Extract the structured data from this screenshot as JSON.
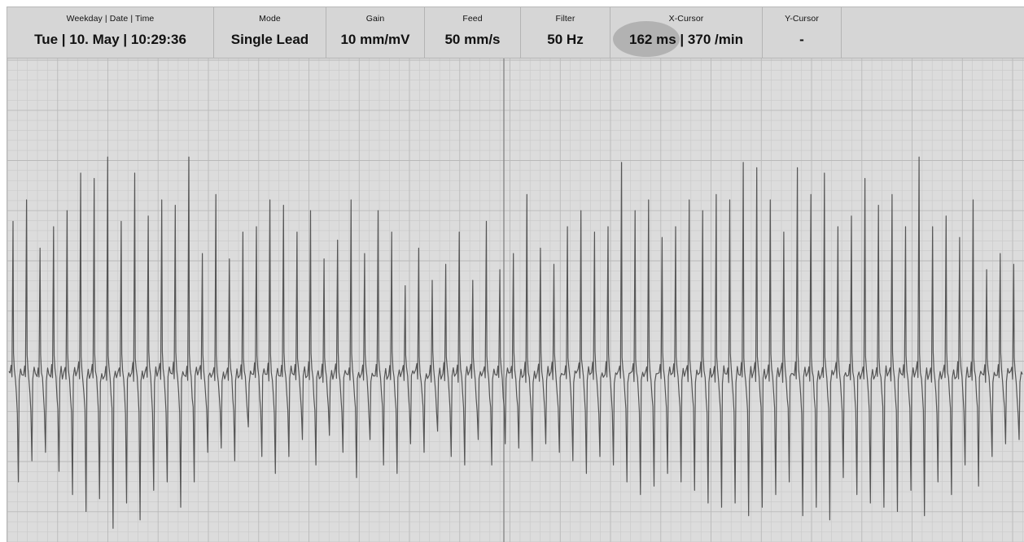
{
  "header": {
    "weekday_date_time": {
      "label": "Weekday | Date | Time",
      "value": "Tue | 10. May | 10:29:36"
    },
    "mode": {
      "label": "Mode",
      "value": "Single Lead"
    },
    "gain": {
      "label": "Gain",
      "value": "10 mm/mV"
    },
    "feed": {
      "label": "Feed",
      "value": "50 mm/s"
    },
    "filter": {
      "label": "Filter",
      "value": "50 Hz"
    },
    "x_cursor": {
      "label": "X-Cursor",
      "value_ms": "162 ms",
      "separator": "|",
      "value_rate": "370 /min"
    },
    "y_cursor": {
      "label": "Y-Cursor",
      "value": "-"
    }
  },
  "colors": {
    "background": "#dcdcdc",
    "grid_minor": "#c9c9c9",
    "grid_major": "#b9b9b9",
    "trace": "#555555",
    "cursor_highlight": "#a9a9a9"
  },
  "trace": {
    "beat_peaks": [
      0.62,
      0.7,
      0.52,
      0.6,
      0.66,
      0.8,
      0.78,
      0.86,
      0.62,
      0.8,
      0.64,
      0.7,
      0.68,
      0.86,
      0.5,
      0.72,
      0.48,
      0.58,
      0.6,
      0.7,
      0.68,
      0.58,
      0.66,
      0.48,
      0.55,
      0.7,
      0.5,
      0.66,
      0.58,
      0.38,
      0.52,
      0.4,
      0.46,
      0.58,
      0.4,
      0.62,
      0.44,
      0.5,
      0.72,
      0.52,
      0.46,
      0.6,
      0.66,
      0.58,
      0.6,
      0.84,
      0.66,
      0.7,
      0.56,
      0.6,
      0.7,
      0.66,
      0.72,
      0.7,
      0.84,
      0.82,
      0.7,
      0.58,
      0.82,
      0.72,
      0.8,
      0.6,
      0.64,
      0.78,
      0.68,
      0.72,
      0.6,
      0.86,
      0.6,
      0.64,
      0.56,
      0.7,
      0.44,
      0.5,
      0.46
    ],
    "beat_troughs": [
      0.6,
      0.5,
      0.46,
      0.55,
      0.66,
      0.74,
      0.68,
      0.82,
      0.7,
      0.78,
      0.64,
      0.6,
      0.72,
      0.6,
      0.46,
      0.44,
      0.5,
      0.34,
      0.48,
      0.56,
      0.48,
      0.4,
      0.52,
      0.38,
      0.46,
      0.58,
      0.4,
      0.52,
      0.56,
      0.42,
      0.46,
      0.36,
      0.48,
      0.52,
      0.4,
      0.52,
      0.42,
      0.44,
      0.5,
      0.42,
      0.46,
      0.5,
      0.56,
      0.48,
      0.52,
      0.6,
      0.66,
      0.62,
      0.56,
      0.6,
      0.64,
      0.7,
      0.72,
      0.7,
      0.76,
      0.72,
      0.66,
      0.6,
      0.76,
      0.72,
      0.78,
      0.58,
      0.66,
      0.7,
      0.72,
      0.74,
      0.64,
      0.76,
      0.6,
      0.66,
      0.52,
      0.62,
      0.48,
      0.42,
      0.4
    ]
  },
  "x_cursor_line": {
    "fraction_of_width": 0.488
  }
}
